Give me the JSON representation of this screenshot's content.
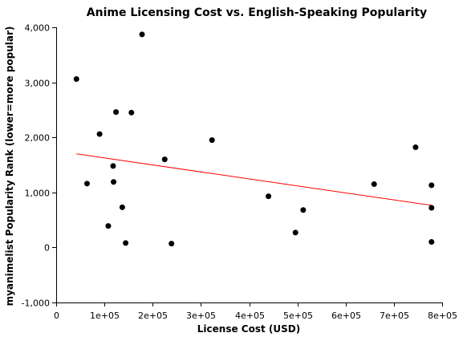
{
  "chart_data": {
    "type": "scatter",
    "title": "Anime Licensing Cost vs. English-Speaking Popularity",
    "xlabel": "License Cost (USD)",
    "ylabel": "myanimelist Popularity Rank (lower=more popular)",
    "xlim": [
      0,
      800000
    ],
    "ylim": [
      -1000,
      4000
    ],
    "x_ticks": [
      0,
      100000,
      200000,
      300000,
      400000,
      500000,
      600000,
      700000,
      800000
    ],
    "x_tick_labels": [
      "0",
      "1e+05",
      "2e+05",
      "3e+05",
      "4e+05",
      "5e+05",
      "6e+05",
      "7e+05",
      "8e+05"
    ],
    "y_ticks": [
      -1000,
      0,
      1000,
      2000,
      3000,
      4000
    ],
    "y_tick_labels": [
      "-1,000",
      "0",
      "1,000",
      "2,000",
      "3,000",
      "4,000"
    ],
    "grid": false,
    "legend": "none",
    "point_color": "#000000",
    "trend_color": "#ff0000",
    "points": [
      {
        "x": 42000,
        "y": 3060
      },
      {
        "x": 64000,
        "y": 1160
      },
      {
        "x": 90000,
        "y": 2060
      },
      {
        "x": 108000,
        "y": 390
      },
      {
        "x": 118000,
        "y": 1480
      },
      {
        "x": 119000,
        "y": 1190
      },
      {
        "x": 124000,
        "y": 2460
      },
      {
        "x": 137000,
        "y": 730
      },
      {
        "x": 144000,
        "y": 80
      },
      {
        "x": 156000,
        "y": 2450
      },
      {
        "x": 178000,
        "y": 3870
      },
      {
        "x": 225000,
        "y": 1600
      },
      {
        "x": 239000,
        "y": 70
      },
      {
        "x": 323000,
        "y": 1950
      },
      {
        "x": 440000,
        "y": 930
      },
      {
        "x": 496000,
        "y": 270
      },
      {
        "x": 512000,
        "y": 680
      },
      {
        "x": 659000,
        "y": 1150
      },
      {
        "x": 745000,
        "y": 1820
      },
      {
        "x": 778000,
        "y": 1130
      },
      {
        "x": 778000,
        "y": 720
      },
      {
        "x": 778000,
        "y": 100
      }
    ],
    "trend_line": {
      "x": [
        42000,
        778000
      ],
      "y": [
        1700,
        765
      ]
    }
  }
}
